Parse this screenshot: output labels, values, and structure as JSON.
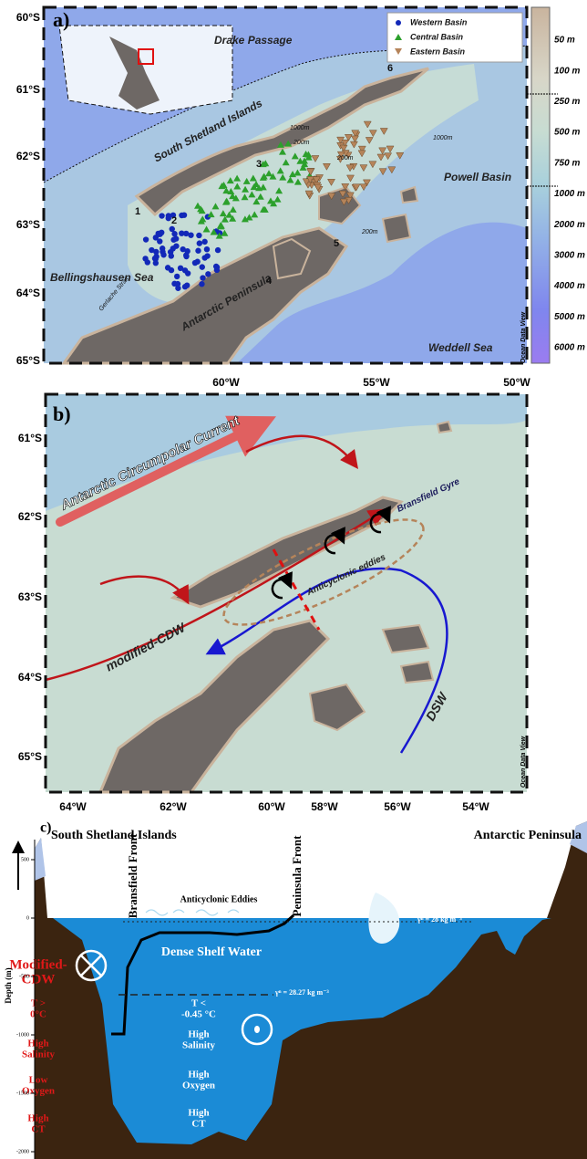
{
  "panel_a": {
    "label": "a)",
    "lat_labels": [
      "60°S",
      "61°S",
      "62°S",
      "63°S",
      "64°S",
      "65°S"
    ],
    "lon_labels": [
      "60°W",
      "55°W",
      "50°W"
    ],
    "legend": [
      "Western Basin",
      "Central Basin",
      "Eastern Basin"
    ],
    "colorbar_labels": [
      "50 m",
      "100 m",
      "250 m",
      "500 m",
      "750 m",
      "1000 m",
      "2000 m",
      "3000 m",
      "4000 m",
      "5000 m",
      "6000 m"
    ],
    "places": [
      "Drake Passage",
      "South Shetland Islands",
      "Powell Basin",
      "Bellingshausen Sea",
      "Antarctic Peninsula",
      "Weddell Sea",
      "Gerlache Strait"
    ],
    "contour_labels": [
      "1000m",
      "200m",
      "1000m",
      "200m",
      "200m"
    ],
    "site_numbers": [
      "1",
      "2",
      "3",
      "4",
      "5",
      "6"
    ],
    "credit": "Ocean Data View"
  },
  "panel_b": {
    "label": "b)",
    "lat_labels": [
      "61°S",
      "62°S",
      "63°S",
      "64°S",
      "65°S"
    ],
    "lon_labels": [
      "64°W",
      "62°W",
      "60°W",
      "58°W",
      "56°W",
      "54°W"
    ],
    "annotations": [
      "Antarctic Circumpolar Current",
      "Bransfield Gyre",
      "Anticyclonic eddies",
      "modified-CDW",
      "DSW"
    ],
    "credit": "Ocean Data View"
  },
  "panel_c": {
    "label": "c)",
    "left_title": "South Shetland Islands",
    "right_title": "Antarctic Peninsula",
    "fronts": [
      "Bransfield Front",
      "Peninsula Front"
    ],
    "eddies": "Anticyclonic Eddies",
    "dsw": [
      "Dense Shelf Water",
      "T <",
      "-0.45 °C",
      "High",
      "Salinity",
      "High",
      "Oxygen",
      "High",
      "CT"
    ],
    "cdw": [
      "Modified-",
      "CDW",
      "T >",
      "0°C",
      "High",
      "Salinity",
      "Low",
      "Oxygen",
      "High",
      "CT"
    ],
    "isopycnals": [
      "γⁿ = 28 kg m⁻³",
      "γⁿ = 28.27 kg m⁻³"
    ],
    "ylabel": "Depth (m)",
    "yticks": [
      500,
      0,
      -500,
      -1000,
      -1500,
      -2000
    ]
  }
}
